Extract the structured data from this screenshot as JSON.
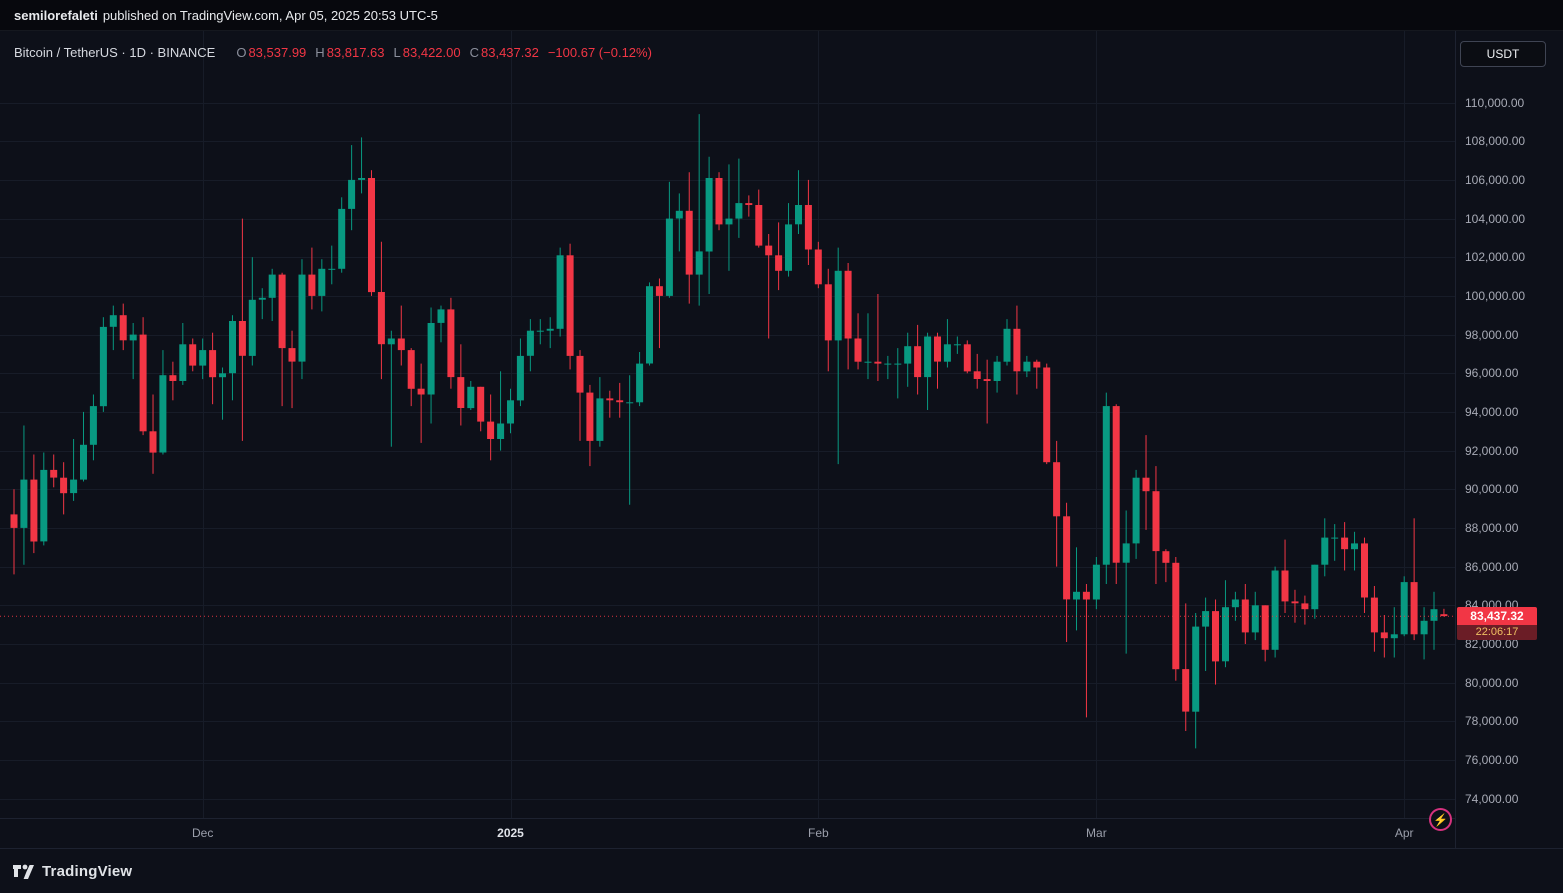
{
  "banner": {
    "author": "semilorefaleti",
    "text": "published on TradingView.com, Apr 05, 2025 20:53 UTC-5"
  },
  "header": {
    "symbol_line": "Bitcoin / TetherUS · 1D · BINANCE",
    "ohlc": [
      {
        "label": "O",
        "value": "83,537.99"
      },
      {
        "label": "H",
        "value": "83,817.63"
      },
      {
        "label": "L",
        "value": "83,422.00"
      },
      {
        "label": "C",
        "value": "83,437.32"
      }
    ],
    "change": "−100.67 (−0.12%)"
  },
  "price_scale": {
    "currency_button": "USDT",
    "last_price": "83,437.32",
    "countdown": "22:06:17"
  },
  "footer": {
    "brand": "TradingView"
  },
  "icons": {
    "boost_glyph": "⚡"
  },
  "colors": {
    "up": "#089981",
    "down": "#f23645",
    "grid": "#171c28",
    "axis_text": "#a8abb6",
    "background": "#0d1019"
  },
  "chart_data": {
    "type": "candlestick",
    "title": "Bitcoin / TetherUS, 1D, BINANCE",
    "interval": "1D",
    "x_start": "2024-11-12",
    "x_end": "2025-04-05",
    "ylim": [
      73000,
      113700
    ],
    "y_ticks": [
      74000,
      76000,
      78000,
      80000,
      82000,
      84000,
      86000,
      88000,
      90000,
      92000,
      94000,
      96000,
      98000,
      100000,
      102000,
      104000,
      106000,
      108000,
      110000
    ],
    "x_ticks": [
      {
        "index": 19,
        "label": "Dec"
      },
      {
        "index": 50,
        "label": "2025",
        "major": true
      },
      {
        "index": 81,
        "label": "Feb"
      },
      {
        "index": 109,
        "label": "Mar"
      },
      {
        "index": 140,
        "label": "Apr"
      }
    ],
    "last_price": 83437.32,
    "up_color": "#089981",
    "down_color": "#f23645",
    "candles": [
      [
        88700,
        90000,
        85600,
        88000
      ],
      [
        88000,
        93300,
        86100,
        90500
      ],
      [
        90500,
        91800,
        86700,
        87300
      ],
      [
        87300,
        91900,
        87100,
        91000
      ],
      [
        91000,
        91800,
        90100,
        90600
      ],
      [
        90600,
        91400,
        88700,
        89800
      ],
      [
        89800,
        92600,
        89400,
        90500
      ],
      [
        90500,
        94000,
        90400,
        92300
      ],
      [
        92300,
        94900,
        91500,
        94300
      ],
      [
        94300,
        98900,
        94000,
        98400
      ],
      [
        98400,
        99500,
        97200,
        99000
      ],
      [
        99000,
        99600,
        97200,
        97700
      ],
      [
        97700,
        98600,
        95700,
        98000
      ],
      [
        98000,
        98900,
        92800,
        93000
      ],
      [
        93000,
        94900,
        90800,
        91900
      ],
      [
        91900,
        97200,
        91800,
        95900
      ],
      [
        95900,
        96600,
        94600,
        95600
      ],
      [
        95600,
        98600,
        95400,
        97500
      ],
      [
        97500,
        97800,
        96100,
        96400
      ],
      [
        96400,
        97800,
        95700,
        97200
      ],
      [
        97200,
        98100,
        94400,
        95800
      ],
      [
        95800,
        96300,
        93600,
        96000
      ],
      [
        96000,
        99000,
        94600,
        98700
      ],
      [
        98700,
        104000,
        92500,
        96900
      ],
      [
        96900,
        102000,
        96400,
        99800
      ],
      [
        99800,
        100400,
        98800,
        99900
      ],
      [
        99900,
        101400,
        98700,
        101100
      ],
      [
        101100,
        101200,
        94300,
        97300
      ],
      [
        97300,
        98200,
        94200,
        96600
      ],
      [
        96600,
        101900,
        95700,
        101100
      ],
      [
        101100,
        102500,
        99300,
        100000
      ],
      [
        100000,
        101900,
        99200,
        101400
      ],
      [
        101400,
        102600,
        100600,
        101400
      ],
      [
        101400,
        105100,
        101200,
        104500
      ],
      [
        104500,
        107800,
        103400,
        106000
      ],
      [
        106000,
        108200,
        105300,
        106100
      ],
      [
        106100,
        106500,
        100000,
        100200
      ],
      [
        100200,
        102800,
        95700,
        97500
      ],
      [
        97500,
        98200,
        92200,
        97800
      ],
      [
        97800,
        99500,
        96400,
        97200
      ],
      [
        97200,
        97300,
        94300,
        95200
      ],
      [
        95200,
        96500,
        92400,
        94900
      ],
      [
        94900,
        99400,
        93400,
        98600
      ],
      [
        98600,
        99500,
        97600,
        99300
      ],
      [
        99300,
        99900,
        95200,
        95800
      ],
      [
        95800,
        97500,
        93300,
        94200
      ],
      [
        94200,
        95600,
        94100,
        95300
      ],
      [
        95300,
        95300,
        93000,
        93500
      ],
      [
        93500,
        94900,
        91500,
        92600
      ],
      [
        92600,
        96100,
        92000,
        93400
      ],
      [
        93400,
        95200,
        92900,
        94600
      ],
      [
        94600,
        97800,
        94300,
        96900
      ],
      [
        96900,
        98800,
        96100,
        98200
      ],
      [
        98200,
        98800,
        97500,
        98200
      ],
      [
        98200,
        98900,
        97300,
        98300
      ],
      [
        98300,
        102500,
        97900,
        102100
      ],
      [
        102100,
        102700,
        96200,
        96900
      ],
      [
        96900,
        97200,
        92500,
        95000
      ],
      [
        95000,
        95400,
        91200,
        92500
      ],
      [
        92500,
        95800,
        92200,
        94700
      ],
      [
        94700,
        95100,
        93700,
        94600
      ],
      [
        94600,
        95500,
        93700,
        94500
      ],
      [
        94500,
        95900,
        89200,
        94500
      ],
      [
        94500,
        97100,
        94300,
        96500
      ],
      [
        96500,
        100700,
        96400,
        100500
      ],
      [
        100500,
        100900,
        97300,
        100000
      ],
      [
        100000,
        105900,
        99900,
        104000
      ],
      [
        104000,
        105300,
        102300,
        104400
      ],
      [
        104400,
        106400,
        99600,
        101100
      ],
      [
        101100,
        109400,
        99500,
        102300
      ],
      [
        102300,
        107200,
        100100,
        106100
      ],
      [
        106100,
        106400,
        103400,
        103700
      ],
      [
        103700,
        106800,
        101300,
        104000
      ],
      [
        104000,
        107100,
        103000,
        104800
      ],
      [
        104800,
        105200,
        104100,
        104700
      ],
      [
        104700,
        105500,
        102500,
        102600
      ],
      [
        102600,
        103200,
        97800,
        102100
      ],
      [
        102100,
        103800,
        100300,
        101300
      ],
      [
        101300,
        104800,
        101000,
        103700
      ],
      [
        103700,
        106500,
        103200,
        104700
      ],
      [
        104700,
        106000,
        101600,
        102400
      ],
      [
        102400,
        102800,
        100400,
        100600
      ],
      [
        100600,
        101400,
        96100,
        97700
      ],
      [
        97700,
        102500,
        91300,
        101300
      ],
      [
        101300,
        101700,
        96200,
        97800
      ],
      [
        97800,
        99100,
        96200,
        96600
      ],
      [
        96600,
        99100,
        95700,
        96600
      ],
      [
        96600,
        100100,
        95600,
        96500
      ],
      [
        96500,
        96900,
        95700,
        96500
      ],
      [
        96500,
        97300,
        94700,
        96500
      ],
      [
        96500,
        98100,
        95300,
        97400
      ],
      [
        97400,
        98500,
        94900,
        95800
      ],
      [
        95800,
        98100,
        94100,
        97900
      ],
      [
        97900,
        98100,
        95200,
        96600
      ],
      [
        96600,
        98800,
        96300,
        97500
      ],
      [
        97500,
        97900,
        97000,
        97500
      ],
      [
        97500,
        97700,
        96000,
        96100
      ],
      [
        96100,
        97000,
        95200,
        95700
      ],
      [
        95700,
        96700,
        93400,
        95600
      ],
      [
        95600,
        96900,
        95000,
        96600
      ],
      [
        96600,
        98800,
        96400,
        98300
      ],
      [
        98300,
        99500,
        94900,
        96100
      ],
      [
        96100,
        96900,
        95800,
        96600
      ],
      [
        96600,
        96700,
        95200,
        96300
      ],
      [
        96300,
        96500,
        91300,
        91400
      ],
      [
        91400,
        92500,
        86000,
        88600
      ],
      [
        88600,
        89300,
        82100,
        84300
      ],
      [
        84300,
        87000,
        82700,
        84700
      ],
      [
        84700,
        85100,
        78200,
        84300
      ],
      [
        84300,
        86500,
        83800,
        86100
      ],
      [
        86100,
        95000,
        85100,
        94300
      ],
      [
        94300,
        94400,
        85100,
        86200
      ],
      [
        86200,
        88900,
        81500,
        87200
      ],
      [
        87200,
        91000,
        86400,
        90600
      ],
      [
        90600,
        92800,
        87900,
        89900
      ],
      [
        89900,
        91200,
        85100,
        86800
      ],
      [
        86800,
        86900,
        85200,
        86200
      ],
      [
        86200,
        86500,
        80100,
        80700
      ],
      [
        80700,
        84100,
        77500,
        78500
      ],
      [
        78500,
        83600,
        76600,
        82900
      ],
      [
        82900,
        84400,
        80600,
        83700
      ],
      [
        83700,
        84300,
        79900,
        81100
      ],
      [
        81100,
        85300,
        80800,
        83900
      ],
      [
        83900,
        84700,
        83200,
        84300
      ],
      [
        84300,
        85100,
        82000,
        82600
      ],
      [
        82600,
        84700,
        82200,
        84000
      ],
      [
        84000,
        84000,
        81100,
        81700
      ],
      [
        81700,
        86000,
        81300,
        85800
      ],
      [
        85800,
        87400,
        83600,
        84200
      ],
      [
        84200,
        84800,
        83100,
        84100
      ],
      [
        84100,
        84500,
        83000,
        83800
      ],
      [
        83800,
        86100,
        83300,
        86100
      ],
      [
        86100,
        88500,
        85500,
        87500
      ],
      [
        87500,
        88200,
        86300,
        87500
      ],
      [
        87500,
        88300,
        85800,
        86900
      ],
      [
        86900,
        87800,
        85800,
        87200
      ],
      [
        87200,
        87500,
        83600,
        84400
      ],
      [
        84400,
        85000,
        81600,
        82600
      ],
      [
        82600,
        83500,
        81300,
        82300
      ],
      [
        82300,
        83900,
        81300,
        82500
      ],
      [
        82500,
        85500,
        82400,
        85200
      ],
      [
        85200,
        88500,
        82200,
        82500
      ],
      [
        82500,
        83900,
        81200,
        83200
      ],
      [
        83200,
        84700,
        81700,
        83800
      ],
      [
        83537.99,
        83817.63,
        83422.0,
        83437.32
      ]
    ]
  }
}
